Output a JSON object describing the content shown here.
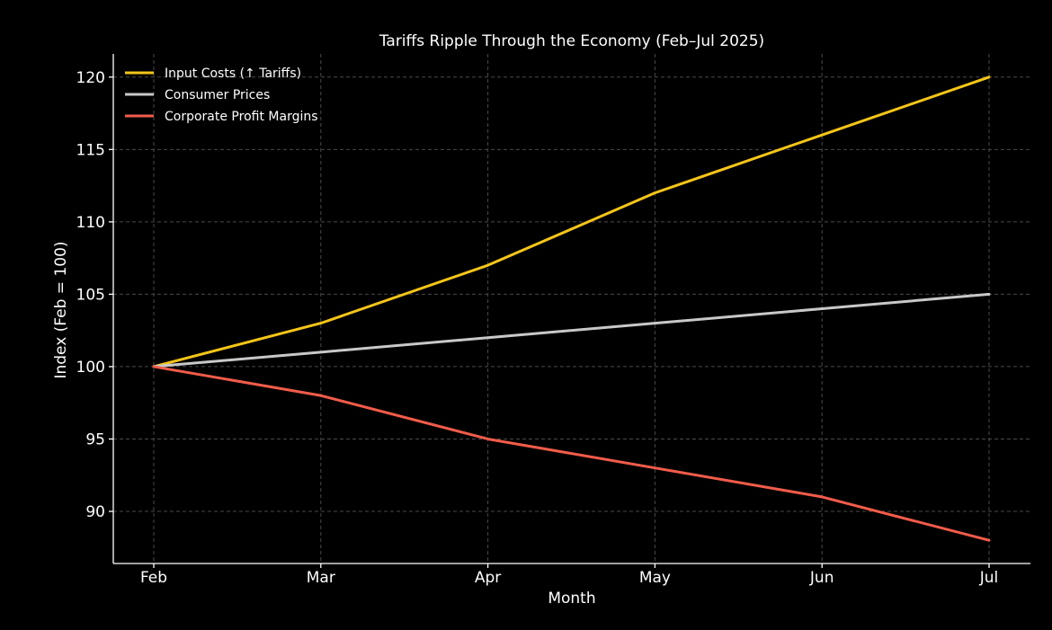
{
  "chart_data": {
    "type": "line",
    "title": "Tariffs Ripple Through the Economy (Feb–Jul 2025)",
    "xlabel": "Month",
    "ylabel": "Index (Feb = 100)",
    "categories": [
      "Feb",
      "Mar",
      "Apr",
      "May",
      "Jun",
      "Jul"
    ],
    "ylim": [
      86.4,
      121.6
    ],
    "yticks": [
      90,
      95,
      100,
      105,
      110,
      115,
      120
    ],
    "grid": true,
    "legend_position": "top-left",
    "background": "#000000",
    "series": [
      {
        "name": "Input Costs (↑ Tariffs)",
        "color": "#f5c518",
        "values": [
          100,
          103,
          107,
          112,
          116,
          120
        ]
      },
      {
        "name": "Consumer Prices",
        "color": "#c8c8c8",
        "values": [
          100,
          101,
          102,
          103,
          104,
          105
        ]
      },
      {
        "name": "Corporate Profit Margins",
        "color": "#f25c4a",
        "values": [
          100,
          98,
          95,
          93,
          91,
          88
        ]
      }
    ]
  }
}
